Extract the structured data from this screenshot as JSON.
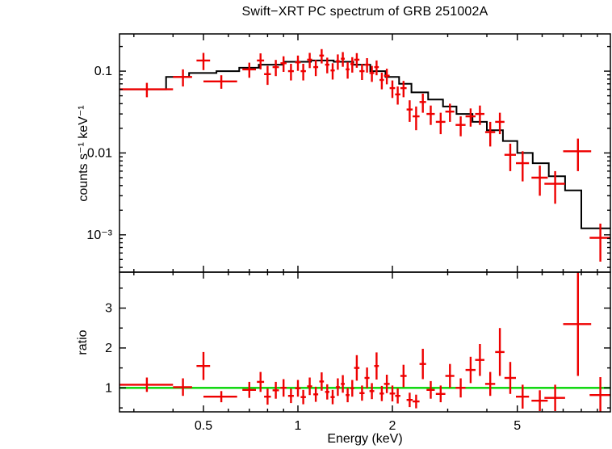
{
  "chart_data": {
    "type": "scatter",
    "title": "Swift−XRT PC spectrum of GRB 251002A",
    "xlabel": "Energy (keV)",
    "xscale": "log",
    "xlim": [
      0.27,
      9.9
    ],
    "x_major_ticks": [
      0.5,
      1,
      2,
      5
    ],
    "x_tick_labels": [
      "0.5",
      "1",
      "2",
      "5"
    ],
    "grid": "off",
    "legend": "none",
    "point_format": [
      "energy_keV",
      "energy_halfwidth_keV",
      "value",
      "error"
    ],
    "panels": [
      {
        "name": "spectrum",
        "ylabel": "counts s⁻¹ keV⁻¹",
        "yscale": "log",
        "ylim": [
          0.00035,
          0.285
        ],
        "y_major_ticks": [
          0.001,
          0.01,
          0.1
        ],
        "y_tick_labels": [
          "10⁻³",
          "0.01",
          "0.1"
        ],
        "series": [
          {
            "name": "data",
            "color": "#ee0000",
            "points": [
              [
                0.33,
                0.07,
                0.06,
                0.012
              ],
              [
                0.43,
                0.03,
                0.085,
                0.02
              ],
              [
                0.5,
                0.025,
                0.135,
                0.032
              ],
              [
                0.57,
                0.07,
                0.075,
                0.014
              ],
              [
                0.7,
                0.035,
                0.105,
                0.022
              ],
              [
                0.76,
                0.02,
                0.135,
                0.03
              ],
              [
                0.8,
                0.02,
                0.092,
                0.024
              ],
              [
                0.85,
                0.02,
                0.112,
                0.025
              ],
              [
                0.9,
                0.02,
                0.125,
                0.027
              ],
              [
                0.95,
                0.02,
                0.1,
                0.023
              ],
              [
                1.0,
                0.02,
                0.128,
                0.027
              ],
              [
                1.04,
                0.02,
                0.1,
                0.023
              ],
              [
                1.09,
                0.02,
                0.138,
                0.029
              ],
              [
                1.14,
                0.02,
                0.112,
                0.025
              ],
              [
                1.19,
                0.02,
                0.155,
                0.031
              ],
              [
                1.24,
                0.02,
                0.12,
                0.026
              ],
              [
                1.29,
                0.02,
                0.102,
                0.023
              ],
              [
                1.34,
                0.02,
                0.132,
                0.028
              ],
              [
                1.39,
                0.02,
                0.142,
                0.029
              ],
              [
                1.44,
                0.02,
                0.105,
                0.024
              ],
              [
                1.49,
                0.02,
                0.122,
                0.026
              ],
              [
                1.54,
                0.03,
                0.138,
                0.028
              ],
              [
                1.6,
                0.03,
                0.1,
                0.022
              ],
              [
                1.66,
                0.03,
                0.12,
                0.024
              ],
              [
                1.72,
                0.03,
                0.095,
                0.021
              ],
              [
                1.78,
                0.03,
                0.112,
                0.023
              ],
              [
                1.85,
                0.03,
                0.078,
                0.018
              ],
              [
                1.92,
                0.04,
                0.088,
                0.019
              ],
              [
                2.0,
                0.04,
                0.062,
                0.015
              ],
              [
                2.08,
                0.04,
                0.052,
                0.013
              ],
              [
                2.17,
                0.05,
                0.062,
                0.014
              ],
              [
                2.27,
                0.05,
                0.034,
                0.01
              ],
              [
                2.38,
                0.06,
                0.028,
                0.009
              ],
              [
                2.5,
                0.06,
                0.042,
                0.011
              ],
              [
                2.65,
                0.08,
                0.03,
                0.008
              ],
              [
                2.85,
                0.1,
                0.024,
                0.007
              ],
              [
                3.05,
                0.1,
                0.032,
                0.008
              ],
              [
                3.3,
                0.12,
                0.022,
                0.006
              ],
              [
                3.55,
                0.13,
                0.028,
                0.007
              ],
              [
                3.8,
                0.13,
                0.03,
                0.008
              ],
              [
                4.1,
                0.15,
                0.018,
                0.006
              ],
              [
                4.4,
                0.15,
                0.024,
                0.007
              ],
              [
                4.75,
                0.2,
                0.0095,
                0.0035
              ],
              [
                5.2,
                0.25,
                0.0075,
                0.003
              ],
              [
                5.9,
                0.35,
                0.005,
                0.002
              ],
              [
                6.6,
                0.5,
                0.0042,
                0.0018
              ],
              [
                7.8,
                0.8,
                0.0105,
                0.0045
              ],
              [
                9.2,
                0.7,
                0.00092,
                0.00045
              ]
            ]
          },
          {
            "name": "model",
            "color": "#000000",
            "step_edges": [
              0.27,
              0.38,
              0.45,
              0.55,
              0.65,
              0.75,
              0.9,
              1.1,
              1.3,
              1.5,
              1.7,
              1.9,
              2.1,
              2.3,
              2.6,
              2.9,
              3.2,
              3.6,
              4.0,
              4.5,
              5.0,
              5.6,
              6.3,
              7.1,
              8.0,
              9.9
            ],
            "step_values": [
              0.06,
              0.085,
              0.095,
              0.1,
              0.11,
              0.12,
              0.13,
              0.135,
              0.13,
              0.12,
              0.1,
              0.085,
              0.07,
              0.055,
              0.045,
              0.037,
              0.03,
              0.024,
              0.019,
              0.014,
              0.01,
              0.0075,
              0.0052,
              0.0035,
              0.0012
            ]
          }
        ]
      },
      {
        "name": "ratio",
        "ylabel": "ratio",
        "yscale": "linear",
        "ylim": [
          0.4,
          3.9
        ],
        "y_major_ticks": [
          1,
          2,
          3
        ],
        "y_tick_labels": [
          "1",
          "2",
          "3"
        ],
        "reference_line": {
          "y": 1,
          "color": "#00d500"
        },
        "series": [
          {
            "name": "ratio",
            "color": "#ee0000",
            "points": [
              [
                0.33,
                0.07,
                1.08,
                0.18
              ],
              [
                0.43,
                0.03,
                1.02,
                0.22
              ],
              [
                0.5,
                0.025,
                1.55,
                0.35
              ],
              [
                0.57,
                0.07,
                0.78,
                0.14
              ],
              [
                0.7,
                0.035,
                0.95,
                0.2
              ],
              [
                0.76,
                0.02,
                1.15,
                0.25
              ],
              [
                0.8,
                0.02,
                0.78,
                0.2
              ],
              [
                0.85,
                0.02,
                0.94,
                0.21
              ],
              [
                0.9,
                0.02,
                1.0,
                0.22
              ],
              [
                0.95,
                0.02,
                0.8,
                0.18
              ],
              [
                1.0,
                0.02,
                0.99,
                0.21
              ],
              [
                1.04,
                0.02,
                0.77,
                0.18
              ],
              [
                1.09,
                0.02,
                1.04,
                0.22
              ],
              [
                1.14,
                0.02,
                0.84,
                0.19
              ],
              [
                1.19,
                0.02,
                1.16,
                0.23
              ],
              [
                1.24,
                0.02,
                0.9,
                0.19
              ],
              [
                1.29,
                0.02,
                0.77,
                0.18
              ],
              [
                1.34,
                0.02,
                1.02,
                0.22
              ],
              [
                1.39,
                0.02,
                1.1,
                0.22
              ],
              [
                1.44,
                0.02,
                0.82,
                0.18
              ],
              [
                1.49,
                0.02,
                0.99,
                0.21
              ],
              [
                1.54,
                0.03,
                1.5,
                0.32
              ],
              [
                1.6,
                0.03,
                0.87,
                0.19
              ],
              [
                1.66,
                0.03,
                1.25,
                0.26
              ],
              [
                1.72,
                0.03,
                0.92,
                0.2
              ],
              [
                1.78,
                0.03,
                1.55,
                0.34
              ],
              [
                1.85,
                0.03,
                0.86,
                0.19
              ],
              [
                1.92,
                0.04,
                1.1,
                0.23
              ],
              [
                2.0,
                0.04,
                0.86,
                0.2
              ],
              [
                2.08,
                0.04,
                0.8,
                0.19
              ],
              [
                2.17,
                0.05,
                1.3,
                0.28
              ],
              [
                2.27,
                0.05,
                0.7,
                0.18
              ],
              [
                2.38,
                0.06,
                0.66,
                0.17
              ],
              [
                2.5,
                0.06,
                1.6,
                0.38
              ],
              [
                2.65,
                0.08,
                0.95,
                0.22
              ],
              [
                2.85,
                0.1,
                0.85,
                0.21
              ],
              [
                3.05,
                0.1,
                1.3,
                0.3
              ],
              [
                3.3,
                0.12,
                1.0,
                0.24
              ],
              [
                3.55,
                0.13,
                1.45,
                0.33
              ],
              [
                3.8,
                0.13,
                1.7,
                0.4
              ],
              [
                4.1,
                0.15,
                1.1,
                0.3
              ],
              [
                4.4,
                0.15,
                1.9,
                0.6
              ],
              [
                4.75,
                0.2,
                1.25,
                0.4
              ],
              [
                5.2,
                0.25,
                0.78,
                0.3
              ],
              [
                5.9,
                0.35,
                0.68,
                0.26
              ],
              [
                6.6,
                0.5,
                0.75,
                0.33
              ],
              [
                7.8,
                0.8,
                2.6,
                1.3
              ],
              [
                9.2,
                0.7,
                0.82,
                0.45
              ]
            ]
          }
        ]
      }
    ]
  }
}
